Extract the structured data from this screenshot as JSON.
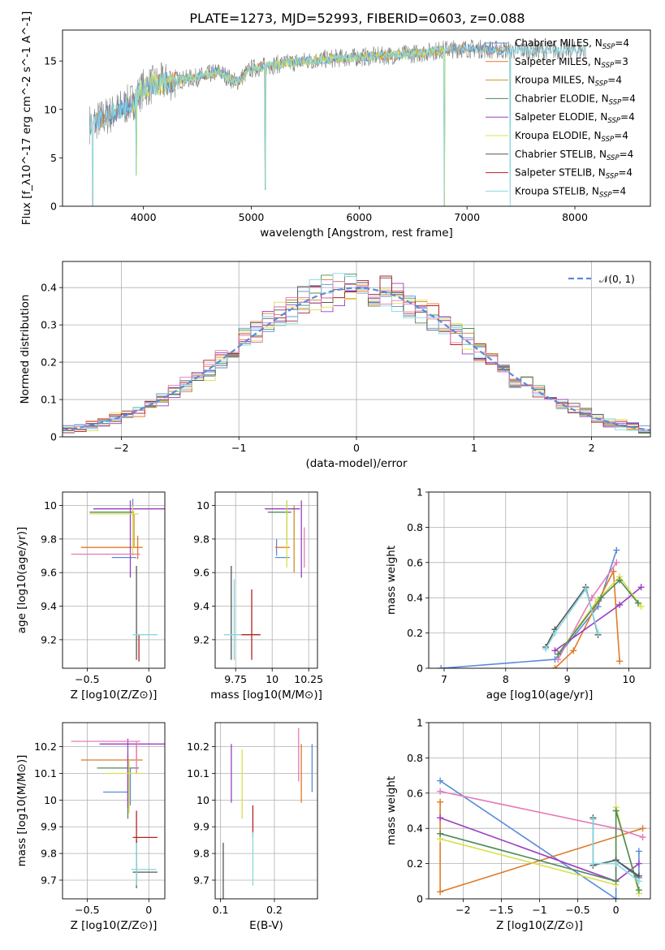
{
  "page_title": "PLATE=1273, MJD=52993, FIBERID=0603, z=0.088",
  "colors": {
    "chabrier_miles": "#5b8bd6",
    "salpeter_miles": "#e07a28",
    "kroupa_miles": "#c9922a",
    "chabrier_elodie": "#4f8a5b",
    "salpeter_elodie": "#9b3fbf",
    "kroupa_elodie": "#d8e04a",
    "chabrier_stelib": "#555555",
    "salpeter_stelib": "#b22222",
    "kroupa_stelib": "#88d8e0",
    "pink": "#e57ab8",
    "data": "#808080"
  },
  "chart_data": [
    {
      "id": "spectrum",
      "type": "line",
      "title": "PLATE=1273, MJD=52993, FIBERID=0603, z=0.088",
      "xlabel": "wavelength [Angstrom, rest frame]",
      "ylabel": "Flux [f_λ10^-17 erg cm^-2 s^-1 A^-1]",
      "xlim": [
        3250,
        8700
      ],
      "ylim": [
        0,
        18.2
      ],
      "xticks": [
        4000,
        5000,
        6000,
        7000,
        8000
      ],
      "yticks": [
        0,
        5,
        10,
        15
      ],
      "legend_position": "right",
      "legend": [
        {
          "label": "Chabrier MILES, N",
          "sub": "SSP",
          "suffix": "=4",
          "color": "#5b8bd6"
        },
        {
          "label": "Salpeter MILES, N",
          "sub": "SSP",
          "suffix": "=3",
          "color": "#e07a28"
        },
        {
          "label": "Kroupa MILES, N",
          "sub": "SSP",
          "suffix": "=4",
          "color": "#c9922a"
        },
        {
          "label": "Chabrier ELODIE, N",
          "sub": "SSP",
          "suffix": "=4",
          "color": "#4f8a5b"
        },
        {
          "label": "Salpeter ELODIE, N",
          "sub": "SSP",
          "suffix": "=4",
          "color": "#9b3fbf"
        },
        {
          "label": "Kroupa ELODIE, N",
          "sub": "SSP",
          "suffix": "=4",
          "color": "#d8e04a"
        },
        {
          "label": "Chabrier STELIB, N",
          "sub": "SSP",
          "suffix": "=4",
          "color": "#555555"
        },
        {
          "label": "Salpeter STELIB, N",
          "sub": "SSP",
          "suffix": "=4",
          "color": "#b22222"
        },
        {
          "label": "Kroupa STELIB, N",
          "sub": "SSP",
          "suffix": "=4",
          "color": "#88d8e0"
        }
      ],
      "continuum": [
        [
          3500,
          8.5
        ],
        [
          3700,
          9.5
        ],
        [
          3900,
          10.8
        ],
        [
          4000,
          12.2
        ],
        [
          4100,
          12.6
        ],
        [
          4300,
          13.0
        ],
        [
          4500,
          13.3
        ],
        [
          4700,
          13.9
        ],
        [
          4860,
          12.8
        ],
        [
          5000,
          14.2
        ],
        [
          5200,
          14.6
        ],
        [
          5500,
          15.0
        ],
        [
          5800,
          15.3
        ],
        [
          6000,
          15.4
        ],
        [
          6300,
          15.6
        ],
        [
          6560,
          15.8
        ],
        [
          6800,
          16.2
        ],
        [
          7000,
          16.3
        ],
        [
          7200,
          16.2
        ],
        [
          7400,
          16.1
        ]
      ],
      "data_range": [
        3500,
        8100
      ],
      "model_ranges": {
        "MILES": [
          3550,
          7400
        ],
        "ELODIE": [
          3900,
          6800
        ],
        "STELIB": [
          3500,
          8100
        ]
      },
      "dips": [
        [
          3530,
          0.0
        ],
        [
          3934,
          3.2
        ],
        [
          5130,
          1.7
        ],
        [
          6790,
          0.0
        ],
        [
          7400,
          0.0
        ]
      ]
    },
    {
      "id": "residuals",
      "type": "line",
      "xlabel": "(data-model)/error",
      "ylabel": "Normed distribution",
      "xlim": [
        -2.5,
        2.5
      ],
      "ylim": [
        0,
        0.47
      ],
      "xticks": [
        -2,
        -1,
        0,
        1,
        2
      ],
      "yticks": [
        0.0,
        0.1,
        0.2,
        0.3,
        0.4
      ],
      "legend_position": "top-right",
      "legend": [
        {
          "label": "𝒩(0, 1)",
          "color": "#5b8bd6",
          "dashed": true
        }
      ],
      "bin_width": 0.1,
      "gaussian": {
        "mu": 0,
        "sigma": 1
      }
    },
    {
      "id": "age_vs_Z",
      "type": "scatter",
      "xlabel": "Z [log10(Z/Z⊙)]",
      "ylabel": "age [log10(age/yr)]",
      "xlim": [
        -0.7,
        0.13
      ],
      "ylim": [
        9.03,
        10.08
      ],
      "xticks": [
        -0.5,
        0.0
      ],
      "yticks": [
        9.2,
        9.4,
        9.6,
        9.8,
        10.0
      ],
      "points": [
        {
          "x": -0.2,
          "xerr": 0.1,
          "y": 9.69,
          "yerr": 0.0,
          "color": "#5b8bd6"
        },
        {
          "x": -0.13,
          "xerr": 0.0,
          "y": 9.99,
          "yerr": 0.05,
          "color": "#5b8bd6"
        },
        {
          "x": -0.3,
          "xerr": 0.25,
          "y": 9.75,
          "yerr": 0.0,
          "color": "#e07a28"
        },
        {
          "x": -0.09,
          "xerr": 0.0,
          "y": 9.75,
          "yerr": 0.07,
          "color": "#e07a28"
        },
        {
          "x": -0.12,
          "xerr": 0.0,
          "y": 9.85,
          "yerr": 0.1,
          "color": "#c9922a"
        },
        {
          "x": -0.3,
          "xerr": 0.18,
          "y": 9.96,
          "yerr": 0.0,
          "color": "#4f8a5b"
        },
        {
          "x": -0.15,
          "xerr": 0.3,
          "y": 9.98,
          "yerr": 0.0,
          "color": "#9b3fbf"
        },
        {
          "x": -0.15,
          "xerr": 0.0,
          "y": 9.8,
          "yerr": 0.23,
          "color": "#9b3fbf"
        },
        {
          "x": -0.28,
          "xerr": 0.2,
          "y": 9.95,
          "yerr": 0.0,
          "color": "#d8e04a"
        },
        {
          "x": -0.13,
          "xerr": 0.0,
          "y": 9.85,
          "yerr": 0.15,
          "color": "#d8e04a"
        },
        {
          "x": -0.35,
          "xerr": 0.28,
          "y": 9.71,
          "yerr": 0.0,
          "color": "#e57ab8"
        },
        {
          "x": -0.1,
          "xerr": 0.0,
          "y": 9.36,
          "yerr": 0.28,
          "color": "#555555"
        },
        {
          "x": -0.08,
          "xerr": 0.0,
          "y": 9.15,
          "yerr": 0.08,
          "color": "#b22222"
        },
        {
          "x": -0.03,
          "xerr": 0.1,
          "y": 9.23,
          "yerr": 0.0,
          "color": "#88d8e0"
        }
      ]
    },
    {
      "id": "age_vs_mass",
      "type": "scatter",
      "xlabel": "mass [log10(M/M⊙)]",
      "ylabel": "",
      "xlim": [
        9.61,
        10.31
      ],
      "ylim": [
        9.03,
        10.08
      ],
      "xticks": [
        9.75,
        10.0,
        10.25
      ],
      "yticks": [
        9.2,
        9.4,
        9.6,
        9.8,
        10.0
      ],
      "points": [
        {
          "x": 10.03,
          "xerr": 0.0,
          "y": 9.75,
          "yerr": 0.05,
          "color": "#5b8bd6"
        },
        {
          "x": 10.07,
          "xerr": 0.05,
          "y": 9.69,
          "yerr": 0.0,
          "color": "#5b8bd6"
        },
        {
          "x": 10.07,
          "xerr": 0.05,
          "y": 9.75,
          "yerr": 0.0,
          "color": "#e07a28"
        },
        {
          "x": 10.15,
          "xerr": 0.0,
          "y": 9.8,
          "yerr": 0.2,
          "color": "#c9922a"
        },
        {
          "x": 10.05,
          "xerr": 0.08,
          "y": 9.96,
          "yerr": 0.0,
          "color": "#4f8a5b"
        },
        {
          "x": 10.1,
          "xerr": 0.0,
          "y": 9.9,
          "yerr": 0.13,
          "color": "#4f8a5b"
        },
        {
          "x": 10.2,
          "xerr": 0.0,
          "y": 9.8,
          "yerr": 0.23,
          "color": "#9b3fbf"
        },
        {
          "x": 10.07,
          "xerr": 0.12,
          "y": 9.98,
          "yerr": 0.0,
          "color": "#9b3fbf"
        },
        {
          "x": 10.1,
          "xerr": 0.0,
          "y": 9.83,
          "yerr": 0.2,
          "color": "#d8e04a"
        },
        {
          "x": 10.22,
          "xerr": 0.0,
          "y": 9.75,
          "yerr": 0.12,
          "color": "#e57ab8"
        },
        {
          "x": 9.72,
          "xerr": 0.0,
          "y": 9.36,
          "yerr": 0.28,
          "color": "#555555"
        },
        {
          "x": 9.85,
          "xerr": 0.07,
          "y": 9.23,
          "yerr": 0.0,
          "color": "#b22222"
        },
        {
          "x": 9.86,
          "xerr": 0.0,
          "y": 9.29,
          "yerr": 0.21,
          "color": "#b22222"
        },
        {
          "x": 9.73,
          "xerr": 0.06,
          "y": 9.23,
          "yerr": 0.0,
          "color": "#88d8e0"
        },
        {
          "x": 9.74,
          "xerr": 0.0,
          "y": 9.32,
          "yerr": 0.24,
          "color": "#88d8e0"
        }
      ]
    },
    {
      "id": "mass_weight_vs_age",
      "type": "line",
      "xlabel": "age [log10(age/yr)]",
      "ylabel": "mass weight",
      "xlim": [
        6.75,
        10.35
      ],
      "ylim": [
        0.0,
        1.0
      ],
      "xticks": [
        7,
        8,
        9,
        10
      ],
      "yticks": [
        0.0,
        0.2,
        0.4,
        0.6,
        0.8,
        1.0
      ],
      "series": [
        {
          "color": "#5b8bd6",
          "x": [
            6.95,
            8.8,
            9.5,
            9.8
          ],
          "y": [
            0.0,
            0.05,
            0.35,
            0.67
          ]
        },
        {
          "color": "#e07a28",
          "x": [
            8.8,
            9.1,
            9.5,
            9.75,
            9.85
          ],
          "y": [
            0.0,
            0.1,
            0.38,
            0.55,
            0.04
          ]
        },
        {
          "color": "#e57ab8",
          "x": [
            8.85,
            9.4,
            9.8
          ],
          "y": [
            0.05,
            0.4,
            0.6
          ]
        },
        {
          "color": "#9b3fbf",
          "x": [
            8.8,
            9.85,
            10.2
          ],
          "y": [
            0.1,
            0.36,
            0.46
          ]
        },
        {
          "color": "#d8e04a",
          "x": [
            8.85,
            9.5,
            9.85,
            10.2
          ],
          "y": [
            0.08,
            0.39,
            0.52,
            0.35
          ]
        },
        {
          "color": "#4f8a5b",
          "x": [
            8.85,
            9.55,
            9.85,
            10.15
          ],
          "y": [
            0.08,
            0.4,
            0.5,
            0.37
          ]
        },
        {
          "color": "#555555",
          "x": [
            8.65,
            8.8,
            9.3,
            9.5
          ],
          "y": [
            0.12,
            0.22,
            0.46,
            0.19
          ]
        },
        {
          "color": "#88d8e0",
          "x": [
            8.65,
            8.8,
            9.3,
            9.5
          ],
          "y": [
            0.11,
            0.2,
            0.45,
            0.2
          ]
        }
      ]
    },
    {
      "id": "mass_vs_Z",
      "type": "scatter",
      "xlabel": "Z [log10(Z/Z⊙)]",
      "ylabel": "mass [log10(M/M⊙)]",
      "xlim": [
        -0.7,
        0.13
      ],
      "ylim": [
        9.63,
        10.29
      ],
      "xticks": [
        -0.5,
        0.0
      ],
      "yticks": [
        9.7,
        9.8,
        9.9,
        10.0,
        10.1,
        10.2
      ],
      "points": [
        {
          "x": -0.27,
          "xerr": 0.1,
          "y": 10.03,
          "yerr": 0.0,
          "color": "#5b8bd6"
        },
        {
          "x": -0.15,
          "xerr": 0.0,
          "y": 10.05,
          "yerr": 0.07,
          "color": "#5b8bd6"
        },
        {
          "x": -0.3,
          "xerr": 0.25,
          "y": 10.15,
          "yerr": 0.0,
          "color": "#e07a28"
        },
        {
          "x": -0.1,
          "xerr": 0.0,
          "y": 10.18,
          "yerr": 0.03,
          "color": "#e07a28"
        },
        {
          "x": -0.25,
          "xerr": 0.17,
          "y": 10.12,
          "yerr": 0.0,
          "color": "#4f8a5b"
        },
        {
          "x": -0.17,
          "xerr": 0.0,
          "y": 10.05,
          "yerr": 0.12,
          "color": "#4f8a5b"
        },
        {
          "x": -0.1,
          "xerr": 0.3,
          "y": 10.21,
          "yerr": 0.0,
          "color": "#9b3fbf"
        },
        {
          "x": -0.17,
          "xerr": 0.0,
          "y": 10.1,
          "yerr": 0.13,
          "color": "#9b3fbf"
        },
        {
          "x": -0.2,
          "xerr": 0.15,
          "y": 10.1,
          "yerr": 0.0,
          "color": "#d8e04a"
        },
        {
          "x": -0.16,
          "xerr": 0.0,
          "y": 10.05,
          "yerr": 0.1,
          "color": "#d8e04a"
        },
        {
          "x": -0.35,
          "xerr": 0.28,
          "y": 10.22,
          "yerr": 0.0,
          "color": "#e57ab8"
        },
        {
          "x": -0.1,
          "xerr": 0.0,
          "y": 10.16,
          "yerr": 0.06,
          "color": "#e57ab8"
        },
        {
          "x": -0.03,
          "xerr": 0.1,
          "y": 9.73,
          "yerr": 0.0,
          "color": "#555555"
        },
        {
          "x": -0.1,
          "xerr": 0.0,
          "y": 9.76,
          "yerr": 0.09,
          "color": "#555555"
        },
        {
          "x": -0.03,
          "xerr": 0.1,
          "y": 9.86,
          "yerr": 0.0,
          "color": "#b22222"
        },
        {
          "x": -0.1,
          "xerr": 0.0,
          "y": 9.9,
          "yerr": 0.06,
          "color": "#b22222"
        },
        {
          "x": -0.04,
          "xerr": 0.1,
          "y": 9.74,
          "yerr": 0.0,
          "color": "#88d8e0"
        },
        {
          "x": -0.1,
          "xerr": 0.0,
          "y": 9.76,
          "yerr": 0.08,
          "color": "#88d8e0"
        }
      ]
    },
    {
      "id": "mass_vs_EBV",
      "type": "scatter",
      "xlabel": "E(B-V)",
      "ylabel": "",
      "xlim": [
        0.09,
        0.28
      ],
      "ylim": [
        9.63,
        10.29
      ],
      "xticks": [
        0.1,
        0.2
      ],
      "yticks": [
        9.7,
        9.8,
        9.9,
        10.0,
        10.1,
        10.2
      ],
      "points": [
        {
          "x": 0.27,
          "xerr": 0.0,
          "y": 10.12,
          "yerr": 0.09,
          "color": "#5b8bd6"
        },
        {
          "x": 0.25,
          "xerr": 0.0,
          "y": 10.1,
          "yerr": 0.11,
          "color": "#e07a28"
        },
        {
          "x": 0.12,
          "xerr": 0.0,
          "y": 10.1,
          "yerr": 0.11,
          "color": "#9b3fbf"
        },
        {
          "x": 0.14,
          "xerr": 0.0,
          "y": 10.06,
          "yerr": 0.13,
          "color": "#d8e04a"
        },
        {
          "x": 0.245,
          "xerr": 0.0,
          "y": 10.17,
          "yerr": 0.1,
          "color": "#e57ab8"
        },
        {
          "x": 0.105,
          "xerr": 0.0,
          "y": 9.73,
          "yerr": 0.11,
          "color": "#555555"
        },
        {
          "x": 0.16,
          "xerr": 0.0,
          "y": 9.92,
          "yerr": 0.06,
          "color": "#b22222"
        },
        {
          "x": 0.16,
          "xerr": 0.0,
          "y": 9.78,
          "yerr": 0.1,
          "color": "#88d8e0"
        }
      ]
    },
    {
      "id": "mass_weight_vs_Z",
      "type": "line",
      "xlabel": "Z [log10(Z/Z⊙)]",
      "ylabel": "mass weight",
      "xlim": [
        -2.45,
        0.45
      ],
      "ylim": [
        0.0,
        1.0
      ],
      "xticks": [
        -2.0,
        -1.5,
        -1.0,
        -0.5,
        0.0
      ],
      "yticks": [
        0.0,
        0.2,
        0.4,
        0.6,
        0.8,
        1.0
      ],
      "series": [
        {
          "color": "#5b8bd6",
          "x": [
            -2.3,
            0.0,
            0.0,
            0.3,
            0.3
          ],
          "y": [
            0.67,
            0.0,
            0.22,
            0.12,
            0.27
          ]
        },
        {
          "color": "#e07a28",
          "x": [
            -2.3,
            -2.3,
            0.35
          ],
          "y": [
            0.55,
            0.04,
            0.4
          ]
        },
        {
          "color": "#e57ab8",
          "x": [
            -2.3,
            0.0,
            0.35
          ],
          "y": [
            0.61,
            0.4,
            0.35
          ]
        },
        {
          "color": "#9b3fbf",
          "x": [
            -2.3,
            0.0,
            0.3
          ],
          "y": [
            0.46,
            0.1,
            0.2
          ]
        },
        {
          "color": "#d8e04a",
          "x": [
            -2.3,
            0.0,
            0.0,
            0.3
          ],
          "y": [
            0.34,
            0.08,
            0.52,
            0.03
          ]
        },
        {
          "color": "#4f8a5b",
          "x": [
            -2.3,
            0.0,
            0.0,
            0.3
          ],
          "y": [
            0.37,
            0.1,
            0.5,
            0.05
          ]
        },
        {
          "color": "#555555",
          "x": [
            -0.3,
            -0.3,
            0.0,
            0.3
          ],
          "y": [
            0.46,
            0.19,
            0.22,
            0.13
          ]
        },
        {
          "color": "#88d8e0",
          "x": [
            -0.3,
            -0.3,
            0.0,
            0.3
          ],
          "y": [
            0.45,
            0.2,
            0.2,
            0.1
          ]
        }
      ]
    }
  ]
}
